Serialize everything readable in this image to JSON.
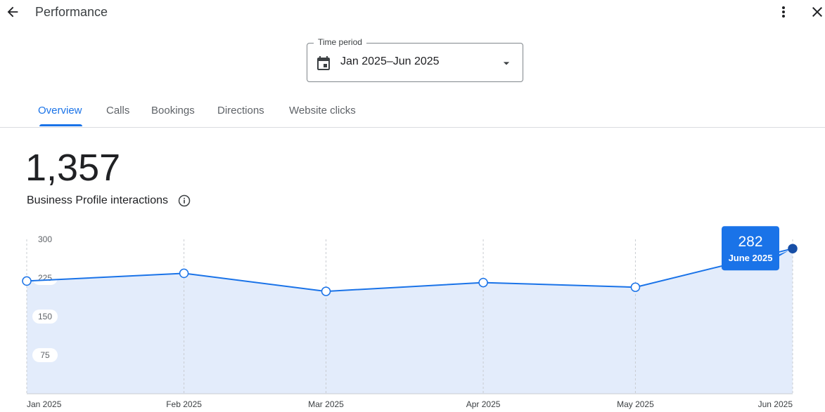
{
  "header": {
    "title": "Performance"
  },
  "time_period": {
    "label": "Time period",
    "value": "Jan 2025–Jun 2025"
  },
  "tabs": [
    "Overview",
    "Calls",
    "Bookings",
    "Directions",
    "Website clicks"
  ],
  "active_tab": 0,
  "summary": {
    "value": "1,357",
    "label": "Business Profile interactions"
  },
  "chart_data": {
    "type": "area",
    "x": [
      "Jan 2025",
      "Feb 2025",
      "Mar 2025",
      "Apr 2025",
      "May 2025",
      "Jun 2025"
    ],
    "series": [
      {
        "color": "#1a73e8",
        "values": [
          219,
          234,
          199,
          216,
          207,
          282
        ]
      }
    ],
    "ylim": [
      0,
      300
    ],
    "yticks": [
      75,
      150,
      225,
      300
    ],
    "grid": true,
    "tooltip": {
      "index": 5,
      "label": "June 2025"
    }
  }
}
